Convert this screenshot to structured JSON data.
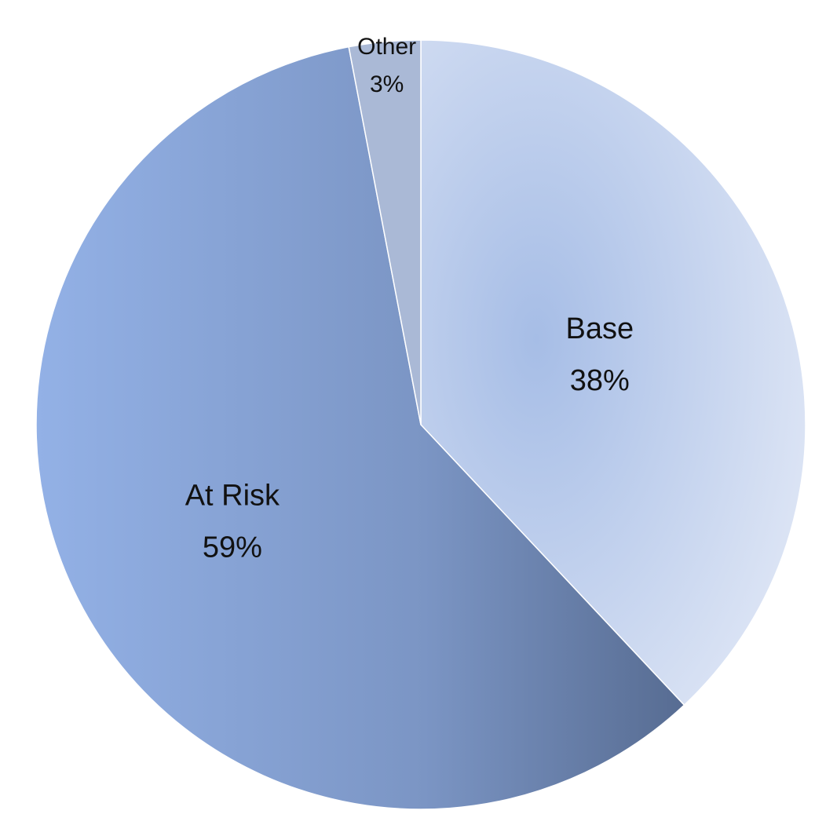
{
  "chart_data": {
    "type": "pie",
    "start_angle_deg": 0,
    "direction": "clockwise",
    "slices": [
      {
        "name": "Base",
        "value": 38,
        "label_line1": "Base",
        "label_line2": "38%",
        "color_light": "#dde5f5",
        "color_mid": "#a6bde6"
      },
      {
        "name": "At Risk",
        "value": 59,
        "label_line1": "At Risk",
        "label_line2": "59%",
        "color_light": "#93b1e6",
        "color_mid": "#576c92"
      },
      {
        "name": "Other",
        "value": 3,
        "label_line1": "Other",
        "label_line2": "3%",
        "color_light": "#aab9d6",
        "color_mid": "#aab9d6"
      }
    ]
  }
}
